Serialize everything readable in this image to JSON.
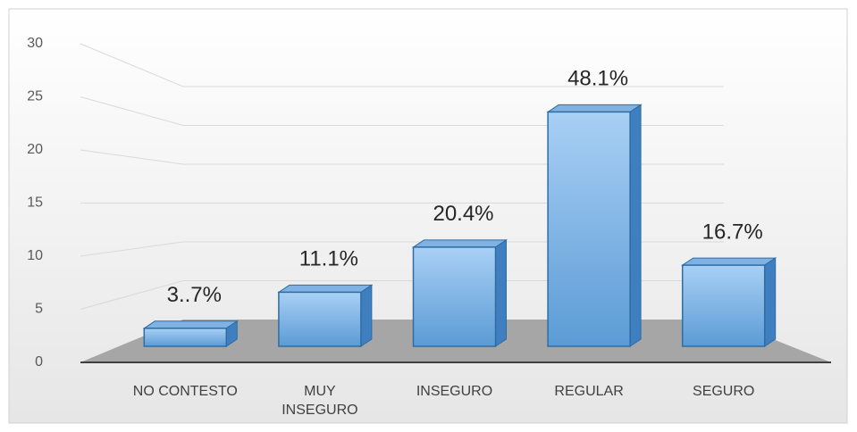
{
  "chart_data": {
    "type": "bar3d",
    "categories": [
      "NO CONTESTO",
      "MUY INSEGURO",
      "INSEGURO",
      "REGULAR",
      "SEGURO"
    ],
    "values": [
      2,
      6,
      11,
      26,
      9
    ],
    "annotations": [
      "3..7%",
      "11.1%",
      "20.4%",
      "48.1%",
      "16.7%"
    ],
    "color": "#5b9bd5",
    "ylim": [
      0,
      30
    ],
    "yticks": [
      0,
      5,
      10,
      15,
      20,
      25,
      30
    ],
    "grid": true
  }
}
